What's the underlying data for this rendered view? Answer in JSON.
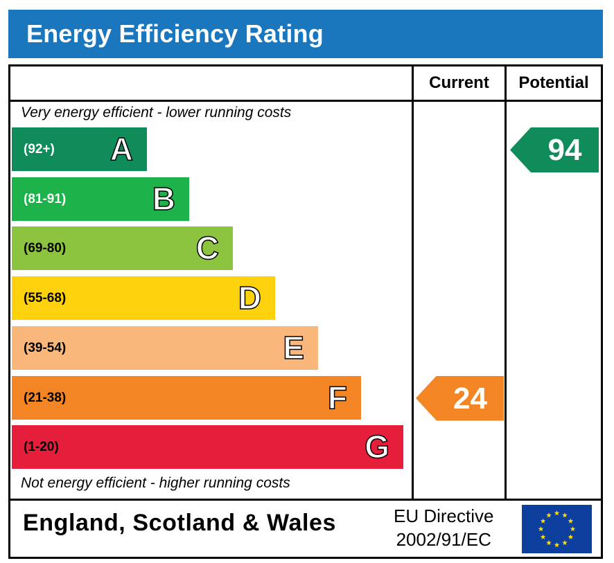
{
  "header": {
    "title": "Energy Efficiency Rating"
  },
  "columns": {
    "current": "Current",
    "potential": "Potential"
  },
  "notes": {
    "top": "Very energy efficient - lower running costs",
    "bottom": "Not energy efficient - higher running costs"
  },
  "chart_data": {
    "type": "bar",
    "title": "Energy Efficiency Rating",
    "categories": [
      "A",
      "B",
      "C",
      "D",
      "E",
      "F",
      "G"
    ],
    "ranges": [
      "(92+)",
      "(81-91)",
      "(69-80)",
      "(55-68)",
      "(39-54)",
      "(21-38)",
      "(1-20)"
    ],
    "colors": [
      "#0f8c59",
      "#1eb24a",
      "#8cc43f",
      "#fdd10b",
      "#f9b77b",
      "#f48524",
      "#e41e3b"
    ],
    "range_text_colors": [
      "#ffffff",
      "#ffffff",
      "#000000",
      "#000000",
      "#000000",
      "#000000",
      "#000000"
    ],
    "current": {
      "value": 24,
      "band": "F"
    },
    "potential": {
      "value": 94,
      "band": "A"
    }
  },
  "footer": {
    "region": "England, Scotland & Wales",
    "directive_line1": "EU Directive",
    "directive_line2": "2002/91/EC",
    "flag_icon": "eu-flag-icon"
  }
}
